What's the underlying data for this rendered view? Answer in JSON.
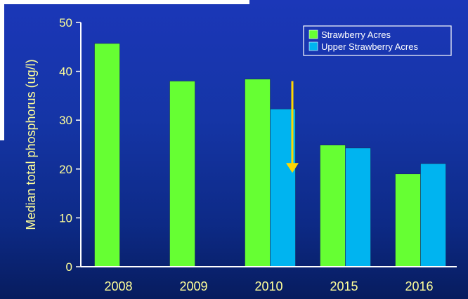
{
  "chart_data": {
    "type": "bar",
    "title": "",
    "xlabel": "",
    "ylabel": "Median total phosphorus (ug/l)",
    "ylim": [
      0,
      50
    ],
    "yticks": [
      0,
      10,
      20,
      30,
      40,
      50
    ],
    "categories": [
      "2008",
      "2009",
      "2010",
      "2015",
      "2016"
    ],
    "series": [
      {
        "name": "Strawberry Acres",
        "color": "#66ff33",
        "values": [
          45.7,
          38.0,
          38.4,
          24.9,
          19.0
        ]
      },
      {
        "name": "Upper Strawberry Acres",
        "color": "#00b4f0",
        "values": [
          null,
          null,
          32.3,
          24.3,
          21.1
        ]
      }
    ],
    "legend_position": "top-right",
    "grid": false,
    "annotations": [
      {
        "type": "down-arrow",
        "color": "#ffd700",
        "x_between": [
          "2010",
          "2015"
        ],
        "from_y": 38,
        "to_y": 19.5
      }
    ],
    "colors": {
      "background": "#1535a6",
      "axis_text": "#ffff99",
      "axis_line": "#ffffff"
    }
  }
}
